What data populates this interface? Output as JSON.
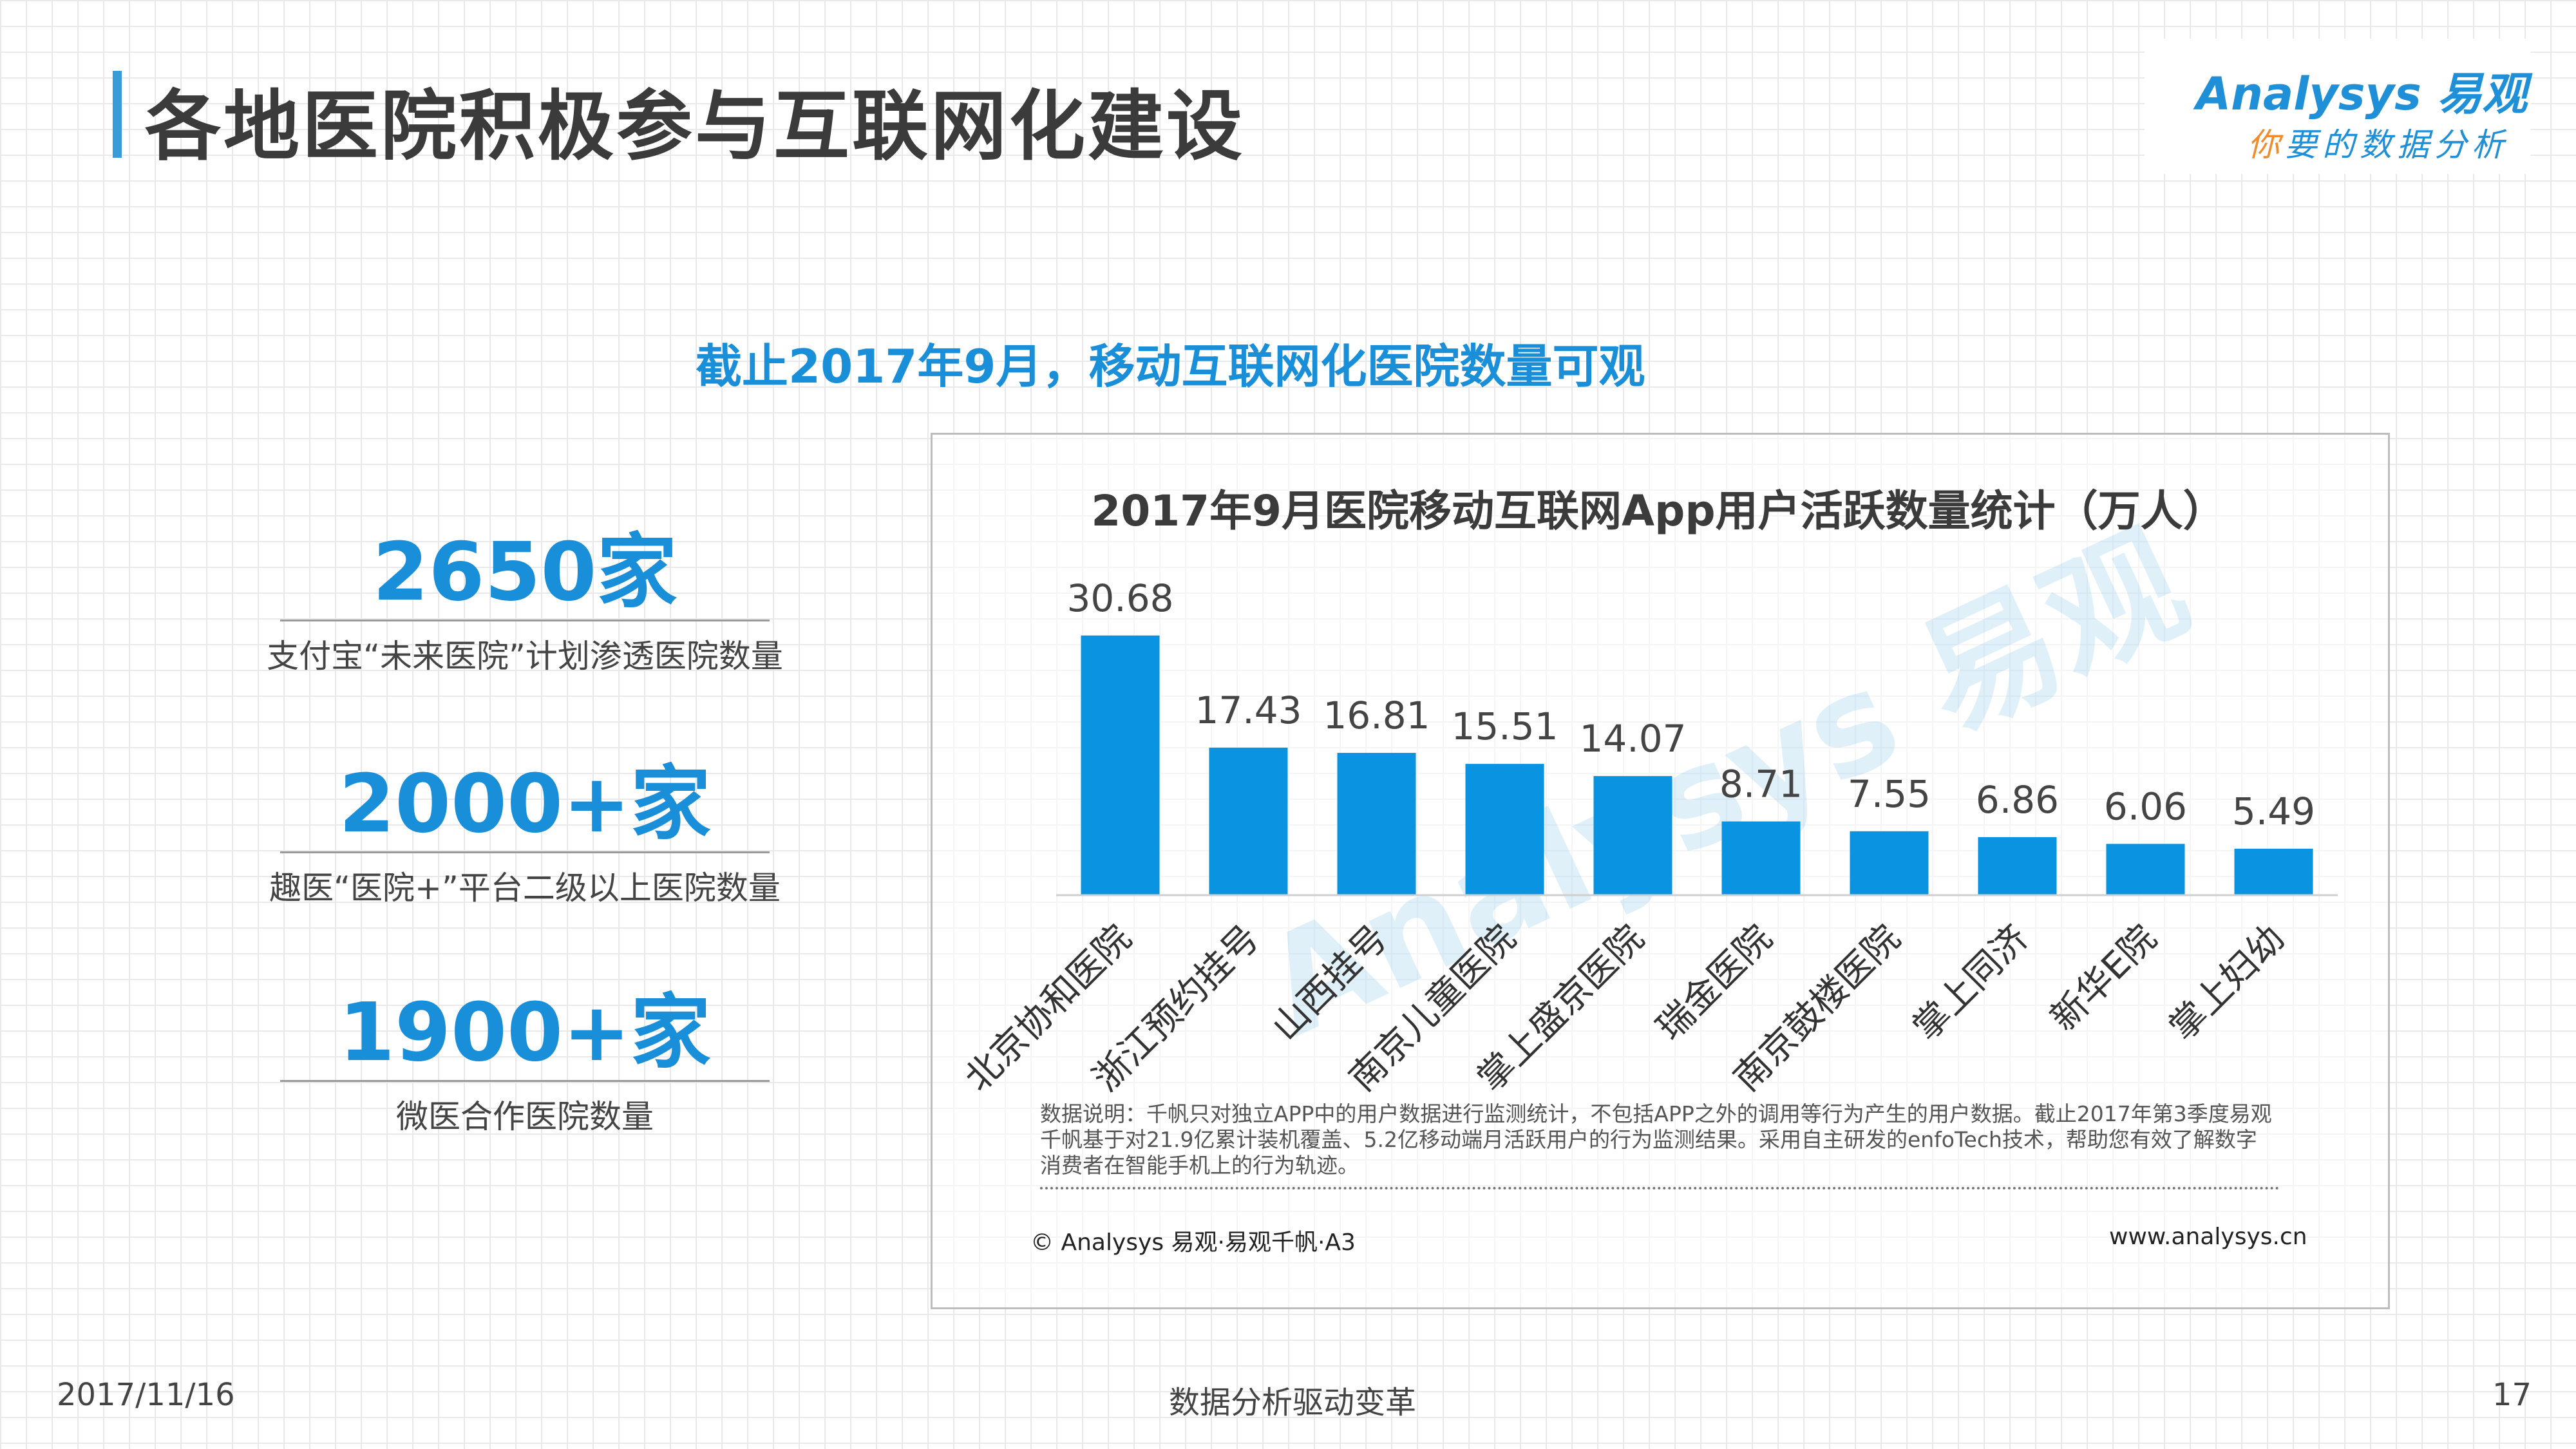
{
  "header": {
    "title": "各地医院积极参与互联网化建设"
  },
  "logo": {
    "brand": "Analysys 易观",
    "slogan_first": "你",
    "slogan_rest": "要的数据分析"
  },
  "subtitle": "截止2017年9月，移动互联网化医院数量可观",
  "stats": [
    {
      "value": "2650家",
      "desc": "支付宝“未来医院”计划渗透医院数量"
    },
    {
      "value": "2000+家",
      "desc": "趣医“医院+”平台二级以上医院数量"
    },
    {
      "value": "1900+家",
      "desc": "微医合作医院数量"
    }
  ],
  "chart_data": {
    "type": "bar",
    "title": "2017年9月医院移动互联网App用户活跃数量统计（万人）",
    "categories": [
      "北京协和医院",
      "浙江预约挂号",
      "山西挂号",
      "南京儿童医院",
      "掌上盛京医院",
      "瑞金医院",
      "南京鼓楼医院",
      "掌上同济",
      "新华E院",
      "掌上妇幼"
    ],
    "values": [
      30.68,
      17.43,
      16.81,
      15.51,
      14.07,
      8.71,
      7.55,
      6.86,
      6.06,
      5.49
    ],
    "value_labels": [
      "30.68",
      "17.43",
      "16.81",
      "15.51",
      "14.07",
      "8.71",
      "7.55",
      "6.86",
      "6.06",
      "5.49"
    ],
    "ylim": [
      0,
      35
    ],
    "grid": false,
    "bar_color": "#0a93e0",
    "xlabel": "",
    "ylabel": ""
  },
  "chart_note": "数据说明：千帆只对独立APP中的用户数据进行监测统计，不包括APP之外的调用等行为产生的用户数据。截止2017年第3季度易观千帆基于对21.9亿累计装机覆盖、5.2亿移动端月活跃用户的行为监测结果。采用自主研发的enfoTech技术，帮助您有效了解数字消费者在智能手机上的行为轨迹。",
  "source": "© Analysys 易观·易观千帆·A3",
  "website": "www.analysys.cn",
  "watermark": "Analysys 易观",
  "footer": {
    "date": "2017/11/16",
    "center": "数据分析驱动变革",
    "page": "17"
  }
}
